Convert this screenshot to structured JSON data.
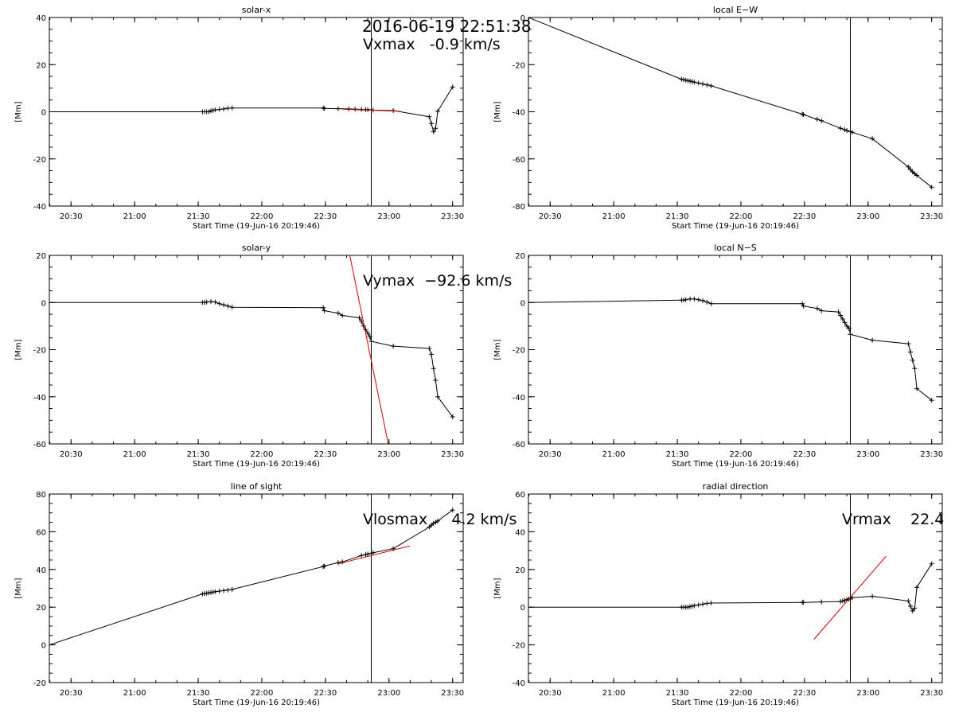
{
  "header": {
    "timestamp": "2016-06-19 22:51:38"
  },
  "colors": {
    "data": "#000000",
    "fit": "#cc0000",
    "axes": "#000000"
  },
  "chart_data": [
    {
      "type": "line",
      "title": "solar-x",
      "ylabel": "[Mm]",
      "xlabel": "Start Time (19-Jun-16 20:19:46)",
      "xlim": [
        "20:19:46",
        "23:35:00"
      ],
      "ylim": [
        -40,
        40
      ],
      "yticks": [
        -40,
        -20,
        0,
        20,
        40
      ],
      "xticks": [
        "20:30",
        "21:00",
        "21:30",
        "22:00",
        "22:30",
        "23:00",
        "23:30"
      ],
      "annotation": "Vxmax   -0.9 km/s",
      "vertical_line": "22:51:38",
      "series": [
        {
          "x": [
            "20:19:46",
            "21:32:00",
            "21:33:00",
            "21:34:00",
            "21:35:00",
            "21:36:00",
            "21:37:00",
            "21:38:00",
            "21:40:00",
            "21:42:00",
            "21:44:00",
            "21:46:00",
            "22:29:00",
            "22:29:30",
            "22:36:00",
            "22:41:00",
            "22:44:00",
            "22:47:00",
            "22:49:00",
            "22:50:00",
            "22:51:38",
            "22:52:30",
            "23:02:00",
            "23:19:00",
            "23:20:00",
            "23:21:00",
            "23:22:00",
            "23:23:00",
            "23:30:00"
          ],
          "y": [
            0,
            0,
            0,
            0,
            0,
            0.4,
            0.6,
            0.8,
            1,
            1.2,
            1.5,
            1.6,
            1.6,
            1.4,
            1.3,
            1.2,
            1.1,
            1.0,
            0.9,
            0.9,
            0.8,
            0.7,
            0.5,
            -2.1,
            -5,
            -8.5,
            -7,
            0.2,
            10.5
          ]
        }
      ],
      "fit_line": {
        "x": [
          "22:38:00",
          "23:05:00"
        ],
        "y": [
          1.1,
          0.2
        ]
      }
    },
    {
      "type": "line",
      "title": "local E−W",
      "ylabel": "[Mm]",
      "xlabel": "Start Time (19-Jun-16 20:19:46)",
      "xlim": [
        "20:19:46",
        "23:35:00"
      ],
      "ylim": [
        -80,
        0
      ],
      "yticks": [
        -80,
        -60,
        -40,
        -20,
        0
      ],
      "xticks": [
        "20:30",
        "21:00",
        "21:30",
        "22:00",
        "22:30",
        "23:00",
        "23:30"
      ],
      "vertical_line": "22:51:38",
      "series": [
        {
          "x": [
            "20:19:46",
            "21:32:00",
            "21:33:00",
            "21:34:00",
            "21:35:00",
            "21:36:00",
            "21:37:00",
            "21:38:00",
            "21:40:00",
            "21:42:00",
            "21:44:00",
            "21:46:00",
            "22:29:00",
            "22:29:30",
            "22:36:00",
            "22:38:00",
            "22:47:00",
            "22:49:00",
            "22:50:00",
            "22:51:38",
            "22:52:30",
            "23:02:00",
            "23:19:00",
            "23:20:00",
            "23:21:00",
            "23:22:00",
            "23:23:00",
            "23:30:00"
          ],
          "y": [
            0,
            -26.2,
            -26.4,
            -26.6,
            -26.8,
            -27,
            -27.2,
            -27.4,
            -27.8,
            -28.2,
            -28.6,
            -29,
            -41,
            -41.2,
            -43.2,
            -43.8,
            -47,
            -47.6,
            -48,
            -48.4,
            -48.7,
            -51.4,
            -63.4,
            -64.5,
            -65.5,
            -66.3,
            -67,
            -72
          ]
        }
      ]
    },
    {
      "type": "line",
      "title": "solar-y",
      "ylabel": "[Mm]",
      "xlabel": "Start Time (19-Jun-16 20:19:46)",
      "xlim": [
        "20:19:46",
        "23:35:00"
      ],
      "ylim": [
        -60,
        20
      ],
      "yticks": [
        -60,
        -40,
        -20,
        0,
        20
      ],
      "xticks": [
        "20:30",
        "21:00",
        "21:30",
        "22:00",
        "22:30",
        "23:00",
        "23:30"
      ],
      "annotation": "Vymax  −92.6 km/s",
      "vertical_line": "22:51:38",
      "series": [
        {
          "x": [
            "20:19:46",
            "21:32:00",
            "21:33:00",
            "21:34:00",
            "21:36:00",
            "21:38:00",
            "21:40:00",
            "21:42:00",
            "21:44:00",
            "21:46:00",
            "22:29:00",
            "22:29:30",
            "22:36:00",
            "22:38:00",
            "22:46:00",
            "22:47:00",
            "22:48:00",
            "22:49:00",
            "22:50:00",
            "22:51:00",
            "22:51:38",
            "23:02:00",
            "23:19:00",
            "23:20:00",
            "23:21:00",
            "23:22:00",
            "23:23:00",
            "23:30:00"
          ],
          "y": [
            0,
            0,
            0,
            0.2,
            0.4,
            0.2,
            -0.5,
            -1,
            -1.5,
            -2,
            -2.2,
            -3.5,
            -4.5,
            -5.5,
            -6.5,
            -8,
            -10,
            -11.5,
            -13,
            -14.5,
            -16.5,
            -18.5,
            -19.5,
            -22,
            -28,
            -33,
            -40,
            -48.5
          ]
        }
      ],
      "fit_line": {
        "x": [
          "22:41:30",
          "22:59:40"
        ],
        "y": [
          20,
          -60
        ]
      }
    },
    {
      "type": "line",
      "title": "local N−S",
      "ylabel": "[Mm]",
      "xlabel": "Start Time (19-Jun-16 20:19:46)",
      "xlim": [
        "20:19:46",
        "23:35:00"
      ],
      "ylim": [
        -60,
        20
      ],
      "yticks": [
        -60,
        -40,
        -20,
        0,
        20
      ],
      "xticks": [
        "20:30",
        "21:00",
        "21:30",
        "22:00",
        "22:30",
        "23:00",
        "23:30"
      ],
      "vertical_line": "22:51:38",
      "series": [
        {
          "x": [
            "20:19:46",
            "21:32:00",
            "21:33:00",
            "21:34:00",
            "21:36:00",
            "21:38:00",
            "21:40:00",
            "21:42:00",
            "21:44:00",
            "21:46:00",
            "22:29:00",
            "22:29:30",
            "22:36:00",
            "22:38:00",
            "22:46:00",
            "22:47:00",
            "22:48:00",
            "22:49:00",
            "22:50:00",
            "22:51:00",
            "22:51:38",
            "23:02:00",
            "23:19:00",
            "23:20:00",
            "23:21:00",
            "23:22:00",
            "23:23:00",
            "23:30:00"
          ],
          "y": [
            0,
            1,
            1,
            1.2,
            1.5,
            1.5,
            1.2,
            0.8,
            0.2,
            -0.5,
            -0.5,
            -1.5,
            -2.5,
            -3.5,
            -4,
            -5.5,
            -7,
            -8.5,
            -10,
            -11,
            -13.5,
            -16,
            -17.5,
            -21,
            -24.5,
            -28,
            -36.5,
            -41.5
          ]
        }
      ]
    },
    {
      "type": "line",
      "title": "line of sight",
      "ylabel": "[Mm]",
      "xlabel": "Start Time (19-Jun-16 20:19:46)",
      "xlim": [
        "20:19:46",
        "23:35:00"
      ],
      "ylim": [
        -20,
        80
      ],
      "yticks": [
        -20,
        0,
        20,
        40,
        60,
        80
      ],
      "xticks": [
        "20:30",
        "21:00",
        "21:30",
        "22:00",
        "22:30",
        "23:00",
        "23:30"
      ],
      "annotation": "Vlosmax     4.2 km/s",
      "vertical_line": "22:51:38",
      "series": [
        {
          "x": [
            "20:19:46",
            "21:32:00",
            "21:33:00",
            "21:34:00",
            "21:35:00",
            "21:36:00",
            "21:37:00",
            "21:38:00",
            "21:40:00",
            "21:42:00",
            "21:44:00",
            "21:46:00",
            "22:29:00",
            "22:29:30",
            "22:36:00",
            "22:38:00",
            "22:47:00",
            "22:49:00",
            "22:50:00",
            "22:51:38",
            "22:52:30",
            "23:02:00",
            "23:19:00",
            "23:20:00",
            "23:21:00",
            "23:22:00",
            "23:23:00",
            "23:30:00"
          ],
          "y": [
            0,
            27,
            27.2,
            27.4,
            27.6,
            27.8,
            28,
            28.2,
            28.5,
            28.8,
            29.1,
            29.4,
            41.5,
            41.8,
            43.6,
            44,
            47.4,
            47.9,
            48.2,
            48.6,
            48.9,
            51,
            62.5,
            63.5,
            64.5,
            65,
            65.7,
            71.5
          ]
        }
      ],
      "fit_line": {
        "x": [
          "22:36:00",
          "23:10:00"
        ],
        "y": [
          43,
          52.5
        ]
      }
    },
    {
      "type": "line",
      "title": "radial direction",
      "ylabel": "[Mm]",
      "xlabel": "Start Time (19-Jun-16 20:19:46)",
      "xlim": [
        "20:19:46",
        "23:35:00"
      ],
      "ylim": [
        -40,
        60
      ],
      "yticks": [
        -40,
        -20,
        0,
        20,
        40,
        60
      ],
      "xticks": [
        "20:30",
        "21:00",
        "21:30",
        "22:00",
        "22:30",
        "23:00",
        "23:30"
      ],
      "annotation": "Vrmax    22.4",
      "vertical_line": "22:51:38",
      "series": [
        {
          "x": [
            "20:19:46",
            "21:32:00",
            "21:33:00",
            "21:34:00",
            "21:35:00",
            "21:36:00",
            "21:37:00",
            "21:38:00",
            "21:40:00",
            "21:42:00",
            "21:44:00",
            "21:46:00",
            "22:29:00",
            "22:29:30",
            "22:38:00",
            "22:47:00",
            "22:48:00",
            "22:49:00",
            "22:50:00",
            "22:51:00",
            "22:51:38",
            "22:52:30",
            "23:02:00",
            "23:19:00",
            "23:20:00",
            "23:21:00",
            "23:22:00",
            "23:23:00",
            "23:30:00"
          ],
          "y": [
            0,
            0,
            0,
            0,
            0,
            0.3,
            0.5,
            0.8,
            1.2,
            1.6,
            2,
            2.2,
            2.5,
            2.5,
            2.8,
            3,
            3.3,
            3.6,
            4,
            4.3,
            4.7,
            5,
            5.8,
            3.3,
            0.5,
            -2,
            -0.5,
            10.5,
            23
          ]
        }
      ],
      "fit_line": {
        "x": [
          "22:34:30",
          "23:08:30"
        ],
        "y": [
          -17,
          27
        ]
      }
    }
  ]
}
